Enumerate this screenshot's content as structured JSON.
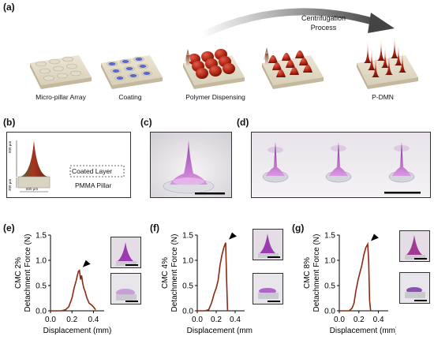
{
  "panels": {
    "a": {
      "label": "(a)",
      "process_line1": "Centrifugation",
      "process_line2": "Process",
      "steps": [
        "Micro-pillar Array",
        "Coating",
        "Polymer Dispensing",
        "",
        "P-DMN"
      ]
    },
    "b": {
      "label": "(b)",
      "dim_top": "500 μm",
      "dim_bottom": "300 μm",
      "dim_width": "600 μm",
      "coated_layer": "Coated Layer",
      "pillar": "PMMA Pillar"
    },
    "c": {
      "label": "(c)"
    },
    "d": {
      "label": "(d)"
    },
    "e": {
      "label": "(e)"
    },
    "f": {
      "label": "(f)"
    },
    "g": {
      "label": "(g)"
    }
  },
  "chart_data": [
    {
      "type": "line",
      "panel": "e",
      "xlabel": "Displacement (mm)",
      "ylabel_line1": "CMC 2%",
      "ylabel_line2": "Detachment Force (N)",
      "xticks": [
        "0.0",
        "0.2",
        "0.4"
      ],
      "yticks": [
        "0.0",
        "0.5",
        "1.0",
        "1.5"
      ],
      "xlim": [
        0,
        0.5
      ],
      "ylim": [
        0,
        1.5
      ],
      "line_color": "#8b2a12",
      "x": [
        0.0,
        0.1,
        0.14,
        0.17,
        0.2,
        0.22,
        0.24,
        0.25,
        0.26,
        0.27,
        0.28,
        0.29,
        0.3,
        0.31,
        0.32,
        0.34,
        0.36,
        0.38,
        0.4,
        0.42
      ],
      "y": [
        0.0,
        0.0,
        0.02,
        0.08,
        0.25,
        0.45,
        0.6,
        0.7,
        0.78,
        0.8,
        0.62,
        0.7,
        0.55,
        0.45,
        0.4,
        0.25,
        0.15,
        0.12,
        0.08,
        0.02
      ]
    },
    {
      "type": "line",
      "panel": "f",
      "xlabel": "Displacement (mm)",
      "ylabel_line1": "CMC 4%",
      "ylabel_line2": "Detachment Force (N)",
      "xticks": [
        "0.0",
        "0.2",
        "0.4"
      ],
      "yticks": [
        "0.0",
        "0.5",
        "1.0",
        "1.5"
      ],
      "xlim": [
        0,
        0.5
      ],
      "ylim": [
        0,
        1.5
      ],
      "line_color": "#8b2a12",
      "x": [
        0.0,
        0.08,
        0.12,
        0.15,
        0.18,
        0.2,
        0.22,
        0.24,
        0.26,
        0.28,
        0.3,
        0.31,
        0.32
      ],
      "y": [
        0.0,
        0.0,
        0.02,
        0.15,
        0.35,
        0.45,
        0.6,
        0.9,
        1.1,
        1.25,
        1.35,
        0.6,
        0.0
      ]
    },
    {
      "type": "line",
      "panel": "g",
      "xlabel": "Displacement (mm)",
      "ylabel_line1": "CMC 8%",
      "ylabel_line2": "Detachment Force (N)",
      "xticks": [
        "0.0",
        "0.2",
        "0.4"
      ],
      "yticks": [
        "0.0",
        "0.5",
        "1.0",
        "1.5"
      ],
      "xlim": [
        0,
        0.5
      ],
      "ylim": [
        0,
        1.5
      ],
      "line_color": "#8b2a12",
      "x": [
        0.0,
        0.1,
        0.13,
        0.15,
        0.17,
        0.19,
        0.21,
        0.23,
        0.25,
        0.27,
        0.29,
        0.3,
        0.31,
        0.32
      ],
      "y": [
        0.0,
        0.0,
        0.05,
        0.15,
        0.4,
        0.6,
        0.75,
        0.9,
        1.1,
        1.25,
        1.32,
        1.0,
        0.2,
        0.0
      ]
    }
  ]
}
